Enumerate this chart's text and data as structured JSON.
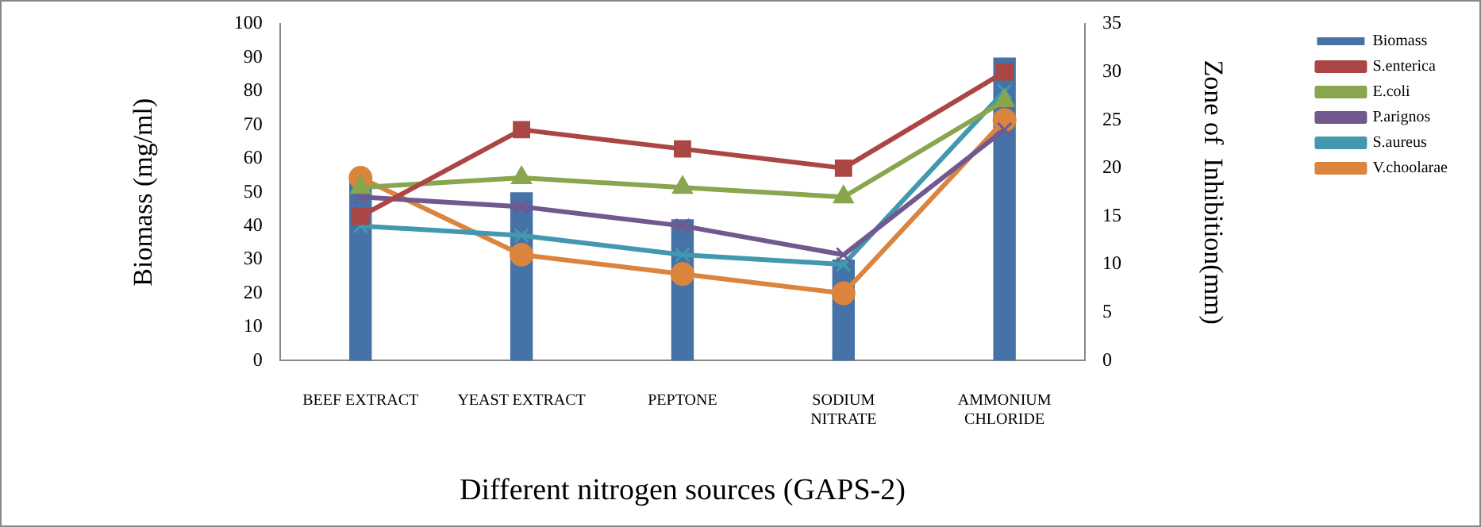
{
  "chart_data": {
    "type": "bar",
    "xlabel": "Different nitrogen sources (GAPS-2)",
    "ylabel": "Biomass (mg/ml)",
    "y2label": "Zone of  Inhibition(mm)",
    "categories": [
      "BEEF EXTRACT",
      "YEAST EXTRACT",
      "PEPTONE",
      "SODIUM NITRATE",
      "AMMONIUM CHLORIDE"
    ],
    "series": [
      {
        "name": "Biomass",
        "color": "#4572a7",
        "values": [
          55,
          50,
          42,
          30,
          90
        ]
      },
      {
        "name": "S.enterica",
        "type": "line",
        "axis": "y2",
        "marker": "square",
        "color": "#aa4643",
        "values": [
          15,
          24,
          22,
          20,
          30
        ]
      },
      {
        "name": "E.coli",
        "type": "line",
        "axis": "y2",
        "marker": "triangle",
        "color": "#89a54e",
        "values": [
          18,
          19,
          18,
          17,
          27
        ]
      },
      {
        "name": "P.arignos",
        "type": "line",
        "axis": "y2",
        "marker": "cross",
        "color": "#71588f",
        "values": [
          17,
          16,
          14,
          11,
          24
        ]
      },
      {
        "name": "S.aureus",
        "type": "line",
        "axis": "y2",
        "marker": "cross",
        "color": "#4198af",
        "values": [
          14,
          13,
          11,
          10,
          28
        ]
      },
      {
        "name": "V.choolarae",
        "type": "line",
        "axis": "y2",
        "marker": "circle",
        "color": "#db843d",
        "values": [
          19,
          11,
          9,
          7,
          25
        ]
      }
    ],
    "ylim": [
      0,
      100
    ],
    "yticks": [
      0,
      10,
      20,
      30,
      40,
      50,
      60,
      70,
      80,
      90,
      100
    ],
    "y2lim": [
      0,
      35
    ],
    "y2ticks": [
      0,
      5,
      10,
      15,
      20,
      25,
      30,
      35
    ],
    "grid": false,
    "legend": "top right"
  }
}
